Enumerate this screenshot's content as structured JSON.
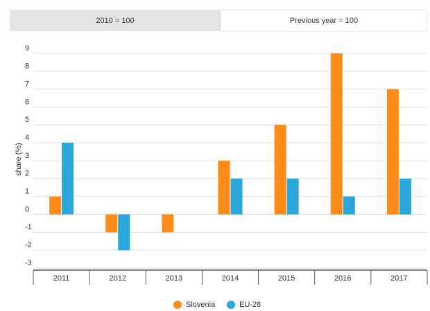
{
  "tabs": [
    "2010 = 100",
    "Previous year = 100"
  ],
  "chart_data": {
    "type": "bar",
    "y_label": "share (%)",
    "categories": [
      "2011",
      "2012",
      "2013",
      "2014",
      "2015",
      "2016",
      "2017"
    ],
    "series": [
      {
        "name": "Slovenia",
        "color": "#ff8c1a",
        "values": [
          1,
          -1,
          -1,
          3,
          5,
          9,
          7
        ]
      },
      {
        "name": "EU-28",
        "color": "#2aa6d9",
        "values": [
          4,
          -2,
          0,
          2,
          2,
          1,
          2
        ]
      }
    ],
    "ylim": [
      -3,
      9
    ],
    "yticks": [
      -3,
      -2,
      -1,
      0,
      1,
      2,
      3,
      4,
      5,
      6,
      7,
      8,
      9
    ],
    "grid": true
  }
}
